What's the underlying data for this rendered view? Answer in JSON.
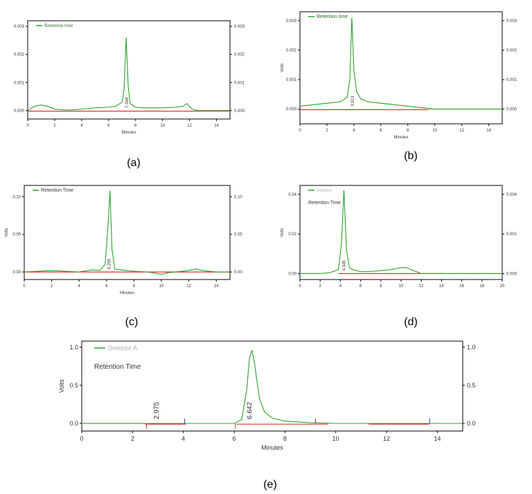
{
  "colors": {
    "trace": "#2ca02c",
    "baseline_red": "#e03030",
    "baseline_orange": "#f0a070",
    "marker_blue": "#2040d0",
    "axis": "#000000"
  },
  "chart_data": [
    {
      "id": "a",
      "type": "line",
      "caption": "(a)",
      "legend_entries": [
        "Retention time"
      ],
      "xlabel": "Minutes",
      "ylabel": "",
      "xlim": [
        0,
        15
      ],
      "ylim": [
        -0.0003,
        0.0032
      ],
      "xticks": [
        "0",
        "2",
        "4",
        "6",
        "8",
        "10",
        "12",
        "14"
      ],
      "yticks": [
        {
          "v": 0.0,
          "t": "0.000"
        },
        {
          "v": 0.001,
          "t": "0.001"
        },
        {
          "v": 0.002,
          "t": "0.002"
        },
        {
          "v": 0.003,
          "t": "0.003"
        }
      ],
      "yticks_right": [
        "0.000",
        "0.001",
        "0.002",
        "0.003"
      ],
      "peak_labels": [
        {
          "x": 7.348,
          "t": "7.348"
        }
      ],
      "series": [
        {
          "x": [
            0,
            0.5,
            1,
            1.5,
            2,
            3,
            4,
            5,
            6,
            6.5,
            7,
            7.15,
            7.3,
            7.45,
            7.6,
            8,
            8.5,
            9,
            10,
            11,
            11.5,
            11.8,
            12.2,
            12.6,
            13,
            14,
            15
          ],
          "y": [
            0.0,
            0.00015,
            0.0002,
            0.00015,
            5e-05,
            2e-05,
            5e-05,
            0.0001,
            0.00012,
            0.00015,
            0.0003,
            0.0008,
            0.0026,
            0.0009,
            0.00025,
            0.00012,
            0.0001,
            0.0001,
            0.0001,
            0.00012,
            0.00015,
            0.00025,
            5e-05,
            0.0,
            0.0,
            0.0,
            0.0
          ]
        }
      ],
      "baselines": [
        {
          "x": [
            0,
            15
          ],
          "y": [
            -2e-05,
            -2e-05
          ],
          "color": "baseline_red"
        }
      ]
    },
    {
      "id": "b",
      "type": "line",
      "caption": "(b)",
      "legend_entries": [
        "Retention time"
      ],
      "xlabel": "Minutes",
      "ylabel": "Volts",
      "xlim": [
        0,
        15
      ],
      "ylim": [
        -0.0005,
        0.0033
      ],
      "xticks": [
        "0",
        "2",
        "4",
        "6",
        "8",
        "10",
        "12",
        "14"
      ],
      "yticks": [
        {
          "v": 0.0,
          "t": "0.000"
        },
        {
          "v": 0.001,
          "t": "0.001"
        },
        {
          "v": 0.002,
          "t": "0.002"
        },
        {
          "v": 0.003,
          "t": "0.003"
        }
      ],
      "yticks_right": [
        "0.000",
        "0.001",
        "0.002",
        "0.003"
      ],
      "peak_labels": [
        {
          "x": 3.9,
          "t": "3.913"
        }
      ],
      "series": [
        {
          "x": [
            0,
            1,
            2,
            3,
            3.5,
            3.7,
            3.85,
            4.0,
            4.2,
            4.5,
            5,
            6,
            7,
            8,
            9,
            10,
            12,
            15
          ],
          "y": [
            0.0001,
            0.00015,
            0.0002,
            0.00025,
            0.0004,
            0.001,
            0.0031,
            0.0013,
            0.0006,
            0.00035,
            0.00025,
            0.0002,
            0.00015,
            0.0001,
            5e-05,
            0.0,
            0.0,
            0.0
          ]
        }
      ],
      "baselines": [
        {
          "x": [
            0,
            9.5
          ],
          "y": [
            -2e-05,
            -2e-05
          ],
          "color": "baseline_red"
        },
        {
          "x": [
            9.5,
            15
          ],
          "y": [
            0.0,
            0.0
          ],
          "color": "baseline_orange"
        }
      ]
    },
    {
      "id": "c",
      "type": "line",
      "caption": "(c)",
      "legend_entries": [
        "Retention Time"
      ],
      "xlabel": "Minutes",
      "ylabel": "Volts",
      "xlim": [
        0,
        15
      ],
      "ylim": [
        -0.01,
        0.115
      ],
      "xticks": [
        "0",
        "2",
        "4",
        "6",
        "8",
        "10",
        "12",
        "14"
      ],
      "yticks": [
        {
          "v": 0.0,
          "t": "0.00"
        },
        {
          "v": 0.05,
          "t": "0.05"
        },
        {
          "v": 0.1,
          "t": "0.10"
        }
      ],
      "yticks_right": [
        "0.00",
        "0.05",
        "0.10"
      ],
      "peak_labels": [
        {
          "x": 6.2,
          "t": "6.255"
        }
      ],
      "series": [
        {
          "x": [
            0,
            1,
            2,
            3,
            4,
            5,
            5.5,
            5.9,
            6.1,
            6.25,
            6.4,
            6.6,
            7,
            8,
            9,
            10,
            10.5,
            11,
            12,
            12.5,
            13,
            14,
            15
          ],
          "y": [
            0.0,
            0.001,
            0.002,
            0.001,
            0.0,
            0.003,
            0.002,
            0.01,
            0.06,
            0.108,
            0.03,
            0.004,
            0.003,
            0.001,
            0.0,
            -0.003,
            -0.001,
            0.0,
            0.002,
            0.004,
            0.002,
            0.0,
            0.0
          ]
        }
      ],
      "baselines": [
        {
          "x": [
            0,
            15
          ],
          "y": [
            0.0,
            0.0
          ],
          "color": "baseline_red"
        }
      ]
    },
    {
      "id": "d",
      "type": "line",
      "caption": "(d)",
      "legend_entries": [
        "Detector",
        "Retention Time"
      ],
      "xlabel": "",
      "ylabel": "Volts",
      "xlim": [
        0,
        20
      ],
      "ylim": [
        -0.003,
        0.0445
      ],
      "xticks": [
        "0",
        "2",
        "4",
        "6",
        "8",
        "10",
        "12",
        "14",
        "16",
        "18",
        "20"
      ],
      "yticks": [
        {
          "v": 0.0,
          "t": "0.00"
        },
        {
          "v": 0.02,
          "t": "0.02"
        },
        {
          "v": 0.04,
          "t": "0.04"
        }
      ],
      "yticks_right": [
        "0.000",
        "0.001",
        "0.004"
      ],
      "peak_labels": [
        {
          "x": 4.35,
          "t": "4.346"
        }
      ],
      "series": [
        {
          "x": [
            0,
            2,
            3,
            3.8,
            4.1,
            4.35,
            4.6,
            4.9,
            5.2,
            6,
            7,
            8,
            9,
            10,
            10.5,
            11,
            11.5,
            12,
            14,
            20
          ],
          "y": [
            0.0,
            0.0,
            0.0005,
            0.002,
            0.015,
            0.042,
            0.012,
            0.003,
            0.002,
            0.001,
            0.001,
            0.0015,
            0.002,
            0.003,
            0.003,
            0.002,
            0.001,
            0.0,
            0.0,
            0.0
          ]
        }
      ],
      "baselines": [
        {
          "x": [
            3.8,
            14
          ],
          "y": [
            0.0,
            0.0
          ],
          "color": "baseline_red"
        },
        {
          "x": [
            14,
            20
          ],
          "y": [
            0.0,
            0.0
          ],
          "color": "baseline_orange"
        }
      ]
    },
    {
      "id": "e",
      "type": "line",
      "caption": "(e)",
      "legend_entries": [
        "Detector A",
        "Retention Time"
      ],
      "xlabel": "Minutes",
      "ylabel": "Volts",
      "xlim": [
        0,
        15
      ],
      "ylim": [
        -0.1,
        1.08
      ],
      "xticks": [
        "0",
        "2",
        "4",
        "6",
        "8",
        "10",
        "12",
        "14"
      ],
      "yticks": [
        {
          "v": 0.0,
          "t": "0.0"
        },
        {
          "v": 0.5,
          "t": "0.5"
        },
        {
          "v": 1.0,
          "t": "1.0"
        }
      ],
      "yticks_right": [
        "0.0",
        "0.5",
        "1.0"
      ],
      "peak_labels": [
        {
          "x": 2.975,
          "t": "2.975"
        },
        {
          "x": 6.642,
          "t": "6.642"
        }
      ],
      "series": [
        {
          "x": [
            0,
            2,
            4,
            6,
            6.3,
            6.5,
            6.6,
            6.7,
            6.8,
            6.9,
            7.0,
            7.2,
            7.5,
            8,
            9,
            10,
            12,
            15
          ],
          "y": [
            0.0,
            0.0,
            0.0,
            0.0,
            0.05,
            0.45,
            0.85,
            0.96,
            0.8,
            0.55,
            0.32,
            0.15,
            0.07,
            0.03,
            0.01,
            0.0,
            0.0,
            0.0
          ]
        }
      ],
      "baselines": [
        {
          "x": [
            0,
            2.5
          ],
          "y": [
            0.0,
            0.0
          ],
          "color": "baseline_orange"
        },
        {
          "x": [
            2.5,
            4.1
          ],
          "y": [
            -0.01,
            -0.01
          ],
          "color": "baseline_red"
        },
        {
          "x": [
            6.1,
            9.7
          ],
          "y": [
            -0.01,
            -0.01
          ],
          "color": "baseline_red"
        },
        {
          "x": [
            11.3,
            13.7
          ],
          "y": [
            -0.01,
            -0.01
          ],
          "color": "baseline_red"
        }
      ],
      "markers": [
        {
          "x": 2.55,
          "color": "baseline_red"
        },
        {
          "x": 4.05,
          "color": "marker_blue"
        },
        {
          "x": 6.05,
          "color": "baseline_red"
        },
        {
          "x": 9.2,
          "color": "marker_blue"
        },
        {
          "x": 13.7,
          "color": "marker_blue"
        }
      ]
    }
  ]
}
